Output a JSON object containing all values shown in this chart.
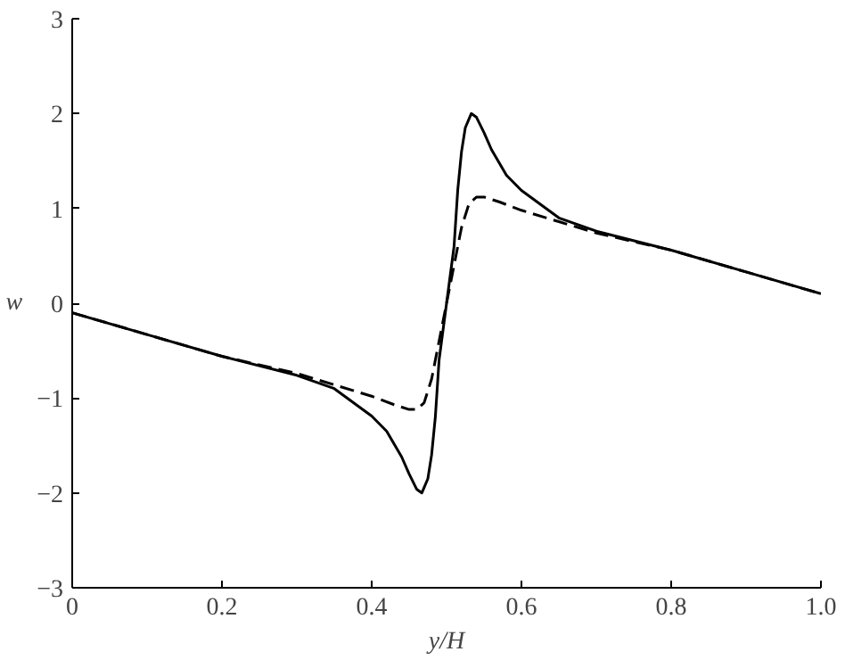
{
  "chart_data": {
    "type": "line",
    "xlabel": "y/H",
    "ylabel": "w",
    "xlim": [
      0,
      1
    ],
    "ylim": [
      -3,
      3
    ],
    "xticks": [
      0,
      0.2,
      0.4,
      0.6,
      0.8,
      {
        "value": 1,
        "label": "1.0"
      }
    ],
    "yticks": [
      {
        "value": -3,
        "label": "−3"
      },
      {
        "value": -2,
        "label": "−2"
      },
      {
        "value": -1,
        "label": "−1"
      },
      0,
      1,
      2,
      3
    ],
    "grid": false,
    "series": [
      {
        "color": "#000000",
        "line_style": "solid",
        "x": [
          0,
          0.1,
          0.2,
          0.3,
          0.35,
          0.4,
          0.42,
          0.44,
          0.45,
          0.46,
          0.467,
          0.475,
          0.48,
          0.485,
          0.49,
          0.5,
          0.51,
          0.515,
          0.52,
          0.525,
          0.533,
          0.54,
          0.55,
          0.56,
          0.58,
          0.6,
          0.65,
          0.7,
          0.8,
          0.9,
          1.0
        ],
        "values": [
          -0.1,
          -0.33,
          -0.56,
          -0.76,
          -0.9,
          -1.19,
          -1.35,
          -1.62,
          -1.8,
          -1.96,
          -2.0,
          -1.85,
          -1.6,
          -1.2,
          -0.6,
          0,
          0.6,
          1.2,
          1.6,
          1.85,
          2.0,
          1.96,
          1.8,
          1.62,
          1.35,
          1.19,
          0.9,
          0.76,
          0.56,
          0.33,
          0.1
        ]
      },
      {
        "color": "#000000",
        "line_style": "dashed",
        "x": [
          0,
          0.1,
          0.2,
          0.3,
          0.35,
          0.4,
          0.43,
          0.45,
          0.46,
          0.47,
          0.48,
          0.49,
          0.5,
          0.51,
          0.52,
          0.53,
          0.54,
          0.55,
          0.57,
          0.6,
          0.65,
          0.7,
          0.8,
          0.9,
          1.0
        ],
        "values": [
          -0.1,
          -0.33,
          -0.56,
          -0.74,
          -0.86,
          -0.98,
          -1.07,
          -1.12,
          -1.12,
          -1.05,
          -0.8,
          -0.4,
          0,
          0.4,
          0.8,
          1.05,
          1.12,
          1.12,
          1.07,
          0.98,
          0.86,
          0.74,
          0.56,
          0.33,
          0.1
        ]
      }
    ]
  }
}
